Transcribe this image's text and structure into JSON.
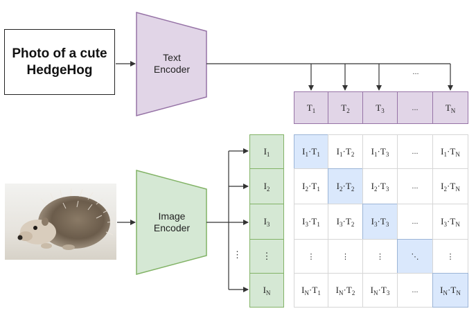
{
  "input_text": {
    "line1": "Photo of a cute",
    "line2": "HedgeHog"
  },
  "text_encoder": {
    "line1": "Text",
    "line2": "Encoder"
  },
  "image_encoder": {
    "line1": "Image",
    "line2": "Encoder"
  },
  "text_embedding_labels": [
    {
      "base": "T",
      "sub": "1"
    },
    {
      "base": "T",
      "sub": "2"
    },
    {
      "base": "T",
      "sub": "3"
    },
    {
      "base": "...",
      "sub": ""
    },
    {
      "base": "T",
      "sub": "N"
    }
  ],
  "image_embedding_labels": [
    {
      "base": "I",
      "sub": "1"
    },
    {
      "base": "I",
      "sub": "2"
    },
    {
      "base": "I",
      "sub": "3"
    },
    {
      "base": "⋮",
      "sub": ""
    },
    {
      "base": "I",
      "sub": "N"
    }
  ],
  "top_arrow_ellipsis": "...",
  "left_arrow_ellipsis": "⋮",
  "matrix_cells": [
    [
      "I1·T1",
      "I1·T2",
      "I1·T3",
      "...",
      "I1·TN"
    ],
    [
      "I2·T1",
      "I2·T2",
      "I2·T3",
      "...",
      "I2·TN"
    ],
    [
      "I3·T1",
      "I3·T2",
      "I3·T3",
      "...",
      "I3·TN"
    ],
    [
      "⋮",
      "⋮",
      "⋮",
      "⋱",
      "⋮"
    ],
    [
      "IN·T1",
      "IN·T2",
      "IN·T3",
      "...",
      "IN·TN"
    ]
  ],
  "colors": {
    "text_encoder_fill": "#e1d5e7",
    "text_encoder_stroke": "#9673a6",
    "image_encoder_fill": "#d5e8d4",
    "image_encoder_stroke": "#82b366",
    "diagonal_fill": "#dae8fc"
  },
  "image_subject": "hedgehog-photo"
}
